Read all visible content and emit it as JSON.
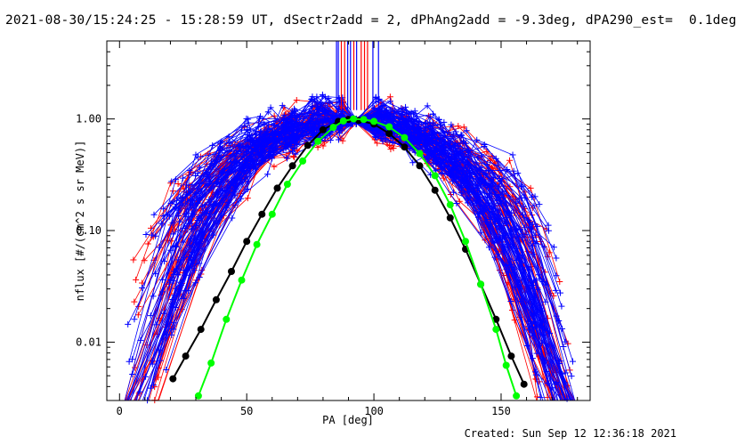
{
  "header": {
    "title": "2021-08-30/15:24:25 - 15:28:59 UT, dSectr2add = 2, dPhAng2add = -9.3deg, dPA290_est=  0.1deg"
  },
  "footer": {
    "created": "Created: Sun Sep 12 12:36:18 2021"
  },
  "chart_data": {
    "type": "line",
    "xlabel": "PA [deg]",
    "ylabel": "nflux [#/(cm^2 s sr MeV)]",
    "x_range": [
      -5,
      185
    ],
    "y_range": [
      0.003,
      5
    ],
    "y_scale": "log",
    "x_ticks": [
      0,
      50,
      100,
      150
    ],
    "x_tick_labels": [
      "0",
      "50",
      "100",
      "150"
    ],
    "y_ticks": [
      1.0,
      0.1,
      0.01
    ],
    "y_tick_labels": [
      "1.00",
      "0.10",
      "0.01"
    ],
    "grid": false,
    "legend": "none",
    "colors": {
      "red_series": "#ff0000",
      "blue_series": "#0000ff",
      "black_fit": "#000000",
      "green_fit": "#00ff00"
    },
    "vertical_markers": {
      "red_x": [
        87.2,
        88.5,
        92.1,
        95.0,
        96.3,
        97.5
      ],
      "blue_x": [
        85.3,
        86.0,
        89.7,
        90.8,
        93.2,
        99.6,
        101.8
      ],
      "y_from": 1.2,
      "y_to": 5
    },
    "series": [
      {
        "name": "",
        "color": "#000000",
        "points": [
          [
            21,
            0.0047
          ],
          [
            26,
            0.0075
          ],
          [
            32,
            0.013
          ],
          [
            38,
            0.024
          ],
          [
            44,
            0.043
          ],
          [
            50,
            0.08
          ],
          [
            56,
            0.14
          ],
          [
            62,
            0.24
          ],
          [
            68,
            0.38
          ],
          [
            74,
            0.58
          ],
          [
            80,
            0.8
          ],
          [
            86,
            0.95
          ],
          [
            90,
            0.99
          ],
          [
            94,
            0.97
          ],
          [
            100,
            0.9
          ],
          [
            106,
            0.74
          ],
          [
            112,
            0.56
          ],
          [
            118,
            0.38
          ],
          [
            124,
            0.23
          ],
          [
            130,
            0.13
          ],
          [
            136,
            0.068
          ],
          [
            142,
            0.033
          ],
          [
            148,
            0.016
          ],
          [
            154,
            0.0075
          ],
          [
            159,
            0.0042
          ]
        ]
      },
      {
        "name": "",
        "color": "#00ff00",
        "points": [
          [
            31,
            0.0033
          ],
          [
            36,
            0.0065
          ],
          [
            42,
            0.016
          ],
          [
            48,
            0.036
          ],
          [
            54,
            0.075
          ],
          [
            60,
            0.14
          ],
          [
            66,
            0.26
          ],
          [
            72,
            0.42
          ],
          [
            78,
            0.63
          ],
          [
            84,
            0.84
          ],
          [
            88,
            0.96
          ],
          [
            92,
            1.0
          ],
          [
            96,
            0.99
          ],
          [
            100,
            0.95
          ],
          [
            106,
            0.85
          ],
          [
            112,
            0.68
          ],
          [
            118,
            0.49
          ],
          [
            124,
            0.31
          ],
          [
            130,
            0.17
          ],
          [
            136,
            0.08
          ],
          [
            142,
            0.033
          ],
          [
            148,
            0.013
          ],
          [
            152,
            0.0062
          ],
          [
            156,
            0.0033
          ]
        ]
      }
    ],
    "scatter_profiles_note": ""
  }
}
